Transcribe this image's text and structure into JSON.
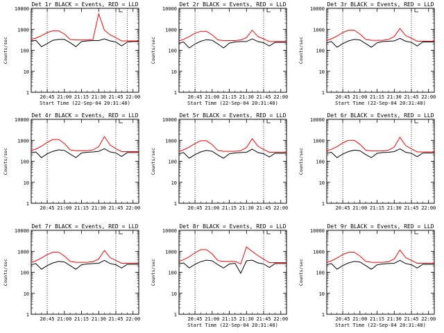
{
  "chart_data": [
    {
      "type": "line",
      "title": "Det 1r BLACK = Events, RED = LLD",
      "xlabel": "Start Time (22-Sep-04 20:31:40)",
      "ylabel": "Counts/sec",
      "yscale": "log",
      "ylim": [
        1,
        10000
      ],
      "x_ticks": [
        "20:45",
        "21:00",
        "21:15",
        "21:30",
        "21:45",
        "22:00"
      ],
      "y_ticks": [
        "1",
        "10",
        "100",
        "1000",
        "10000"
      ],
      "vlines": [
        "20:45",
        "21:45",
        "21:55"
      ],
      "x": [
        "20:31",
        "20:35",
        "20:40",
        "20:45",
        "20:50",
        "20:55",
        "21:00",
        "21:05",
        "21:10",
        "21:15",
        "21:20",
        "21:25",
        "21:30",
        "21:35",
        "21:40",
        "21:45",
        "21:50",
        "21:55",
        "22:00",
        "22:05"
      ],
      "series": [
        {
          "name": "Events",
          "color": "#000000",
          "values": [
            270,
            300,
            150,
            210,
            300,
            330,
            330,
            230,
            150,
            260,
            280,
            290,
            290,
            350,
            280,
            250,
            160,
            250,
            260,
            260
          ]
        },
        {
          "name": "LLD",
          "color": "#ff0000",
          "values": [
            330,
            380,
            500,
            700,
            850,
            850,
            600,
            330,
            310,
            310,
            310,
            330,
            5500,
            900,
            550,
            400,
            280,
            280,
            280,
            280
          ]
        }
      ]
    },
    {
      "type": "line",
      "title": "Det 2r BLACK = Events, RED = LLD",
      "xlabel": "Start Time (22-Sep-04 20:31:40)",
      "ylabel": "Counts/sec",
      "yscale": "log",
      "ylim": [
        1,
        10000
      ],
      "x_ticks": [
        "20:45",
        "21:00",
        "21:15",
        "21:30",
        "21:45",
        "22:00"
      ],
      "y_ticks": [
        "1",
        "10",
        "100",
        "1000",
        "10000"
      ],
      "vlines": [
        "20:45",
        "21:45"
      ],
      "x": [
        "20:31",
        "20:35",
        "20:40",
        "20:45",
        "20:50",
        "20:55",
        "21:00",
        "21:05",
        "21:10",
        "21:15",
        "21:20",
        "21:25",
        "21:30",
        "21:35",
        "21:40",
        "21:45",
        "21:50",
        "21:55",
        "22:00",
        "22:05"
      ],
      "series": [
        {
          "name": "Events",
          "color": "#000000",
          "values": [
            220,
            250,
            130,
            200,
            270,
            320,
            300,
            200,
            130,
            220,
            250,
            260,
            260,
            350,
            260,
            230,
            160,
            240,
            240,
            240
          ]
        },
        {
          "name": "LLD",
          "color": "#ff0000",
          "values": [
            280,
            330,
            450,
            650,
            800,
            800,
            550,
            310,
            290,
            290,
            290,
            310,
            400,
            900,
            450,
            350,
            260,
            260,
            260,
            260
          ]
        }
      ]
    },
    {
      "type": "line",
      "title": "Det 3r BLACK = Events, RED = LLD",
      "xlabel": "Start Time (22-Sep-04 20:31:40)",
      "ylabel": "Counts/sec",
      "yscale": "log",
      "ylim": [
        1,
        10000
      ],
      "x_ticks": [
        "20:45",
        "21:00",
        "21:15",
        "21:30",
        "21:45",
        "22:00"
      ],
      "y_ticks": [
        "1",
        "10",
        "100",
        "1000",
        "10000"
      ],
      "vlines": [
        "20:45",
        "21:45"
      ],
      "x": [
        "20:31",
        "20:35",
        "20:40",
        "20:45",
        "20:50",
        "20:55",
        "21:00",
        "21:05",
        "21:10",
        "21:15",
        "21:20",
        "21:25",
        "21:30",
        "21:35",
        "21:40",
        "21:45",
        "21:50",
        "21:55",
        "22:00",
        "22:05"
      ],
      "series": [
        {
          "name": "Events",
          "color": "#000000",
          "values": [
            230,
            260,
            140,
            210,
            280,
            330,
            310,
            210,
            140,
            230,
            260,
            270,
            280,
            370,
            270,
            240,
            160,
            250,
            250,
            250
          ]
        },
        {
          "name": "LLD",
          "color": "#ff0000",
          "values": [
            300,
            350,
            480,
            700,
            900,
            900,
            600,
            330,
            300,
            300,
            300,
            330,
            450,
            1100,
            500,
            380,
            270,
            270,
            270,
            270
          ]
        }
      ]
    },
    {
      "type": "line",
      "title": "Det 4r BLACK = Events, RED = LLD",
      "xlabel": "",
      "ylabel": "Counts/sec",
      "yscale": "log",
      "ylim": [
        1,
        10000
      ],
      "x_ticks": [
        "20:45",
        "21:00",
        "21:15",
        "21:30",
        "21:45",
        "22:00"
      ],
      "y_ticks": [
        "1",
        "10",
        "100",
        "1000",
        "10000"
      ],
      "vlines": [
        "20:45",
        "21:45"
      ],
      "x": [
        "20:31",
        "20:35",
        "20:40",
        "20:45",
        "20:50",
        "20:55",
        "21:00",
        "21:05",
        "21:10",
        "21:15",
        "21:20",
        "21:25",
        "21:30",
        "21:35",
        "21:40",
        "21:45",
        "21:50",
        "21:55",
        "22:00",
        "22:05"
      ],
      "series": [
        {
          "name": "Events",
          "color": "#000000",
          "values": [
            250,
            280,
            150,
            230,
            300,
            350,
            330,
            220,
            150,
            250,
            270,
            280,
            300,
            400,
            280,
            250,
            170,
            260,
            260,
            260
          ]
        },
        {
          "name": "LLD",
          "color": "#ff0000",
          "values": [
            330,
            380,
            520,
            800,
            1100,
            1100,
            700,
            350,
            320,
            320,
            320,
            350,
            500,
            1500,
            600,
            400,
            290,
            290,
            290,
            290
          ]
        }
      ]
    },
    {
      "type": "line",
      "title": "Det 5r BLACK = Events, RED = LLD",
      "xlabel": "",
      "ylabel": "Counts/sec",
      "yscale": "log",
      "ylim": [
        1,
        10000
      ],
      "x_ticks": [
        "20:45",
        "21:00",
        "21:15",
        "21:30",
        "21:45",
        "22:00"
      ],
      "y_ticks": [
        "1",
        "10",
        "100",
        "1000",
        "10000"
      ],
      "vlines": [
        "20:45",
        "21:45"
      ],
      "x": [
        "20:31",
        "20:35",
        "20:40",
        "20:45",
        "20:50",
        "20:55",
        "21:00",
        "21:05",
        "21:10",
        "21:15",
        "21:20",
        "21:25",
        "21:30",
        "21:35",
        "21:40",
        "21:45",
        "21:50",
        "21:55",
        "22:00",
        "22:05"
      ],
      "series": [
        {
          "name": "Events",
          "color": "#000000",
          "values": [
            230,
            260,
            140,
            210,
            280,
            330,
            300,
            200,
            140,
            230,
            250,
            260,
            270,
            380,
            260,
            230,
            160,
            240,
            240,
            240
          ]
        },
        {
          "name": "LLD",
          "color": "#ff0000",
          "values": [
            300,
            350,
            480,
            700,
            950,
            950,
            620,
            330,
            300,
            300,
            300,
            320,
            450,
            1200,
            520,
            370,
            270,
            270,
            270,
            270
          ]
        }
      ]
    },
    {
      "type": "line",
      "title": "Det 6r BLACK = Events, RED = LLD",
      "xlabel": "",
      "ylabel": "Counts/sec",
      "yscale": "log",
      "ylim": [
        1,
        10000
      ],
      "x_ticks": [
        "20:45",
        "21:00",
        "21:15",
        "21:30",
        "21:45",
        "22:00"
      ],
      "y_ticks": [
        "1",
        "10",
        "100",
        "1000",
        "10000"
      ],
      "vlines": [
        "20:45",
        "21:45"
      ],
      "x": [
        "20:31",
        "20:35",
        "20:40",
        "20:45",
        "20:50",
        "20:55",
        "21:00",
        "21:05",
        "21:10",
        "21:15",
        "21:20",
        "21:25",
        "21:30",
        "21:35",
        "21:40",
        "21:45",
        "21:50",
        "21:55",
        "22:00",
        "22:05"
      ],
      "series": [
        {
          "name": "Events",
          "color": "#000000",
          "values": [
            240,
            270,
            150,
            220,
            290,
            340,
            320,
            210,
            150,
            240,
            260,
            270,
            290,
            390,
            270,
            240,
            165,
            250,
            250,
            250
          ]
        },
        {
          "name": "LLD",
          "color": "#ff0000",
          "values": [
            320,
            370,
            500,
            750,
            1000,
            1000,
            650,
            340,
            310,
            310,
            310,
            340,
            480,
            1400,
            560,
            390,
            280,
            280,
            280,
            280
          ]
        }
      ]
    },
    {
      "type": "line",
      "title": "Det 7r BLACK = Events, RED = LLD",
      "xlabel": "",
      "ylabel": "Counts/sec",
      "yscale": "log",
      "ylim": [
        1,
        10000
      ],
      "x_ticks": [
        "20:45",
        "21:00",
        "21:15",
        "21:30",
        "21:45",
        "22:00"
      ],
      "y_ticks": [
        "1",
        "10",
        "100",
        "1000",
        "10000"
      ],
      "vlines": [
        "20:45",
        "21:45"
      ],
      "x": [
        "20:31",
        "20:35",
        "20:40",
        "20:45",
        "20:50",
        "20:55",
        "21:00",
        "21:05",
        "21:10",
        "21:15",
        "21:20",
        "21:25",
        "21:30",
        "21:35",
        "21:40",
        "21:45",
        "21:50",
        "21:55",
        "22:00",
        "22:05"
      ],
      "series": [
        {
          "name": "Events",
          "color": "#000000",
          "values": [
            230,
            260,
            140,
            210,
            280,
            330,
            310,
            210,
            140,
            230,
            250,
            260,
            270,
            370,
            260,
            230,
            160,
            240,
            240,
            240
          ]
        },
        {
          "name": "LLD",
          "color": "#ff0000",
          "values": [
            300,
            350,
            480,
            700,
            900,
            900,
            600,
            330,
            300,
            300,
            300,
            320,
            430,
            1100,
            500,
            370,
            270,
            270,
            270,
            270
          ]
        }
      ]
    },
    {
      "type": "line",
      "title": "Det 8r BLACK = Events, RED = LLD",
      "xlabel": "Start Time (22-Sep-04 20:31:40)",
      "ylabel": "Counts/sec",
      "yscale": "log",
      "ylim": [
        1,
        10000
      ],
      "x_ticks": [
        "20:45",
        "21:00",
        "21:15",
        "21:30",
        "21:45",
        "22:00"
      ],
      "y_ticks": [
        "1",
        "10",
        "100",
        "1000",
        "10000"
      ],
      "vlines": [
        "20:45",
        "21:45"
      ],
      "x": [
        "20:31",
        "20:35",
        "20:40",
        "20:45",
        "20:50",
        "20:55",
        "21:00",
        "21:05",
        "21:10",
        "21:15",
        "21:20",
        "21:25",
        "21:30",
        "21:35",
        "21:40",
        "21:45",
        "21:50",
        "21:55",
        "22:00",
        "22:05"
      ],
      "series": [
        {
          "name": "Events",
          "color": "#000000",
          "values": [
            250,
            280,
            160,
            240,
            320,
            380,
            350,
            230,
            160,
            250,
            270,
            90,
            350,
            380,
            280,
            250,
            170,
            260,
            260,
            260
          ]
        },
        {
          "name": "LLD",
          "color": "#ff0000",
          "values": [
            330,
            400,
            550,
            850,
            1200,
            1200,
            750,
            360,
            330,
            330,
            330,
            250,
            1600,
            1000,
            620,
            420,
            290,
            290,
            290,
            290
          ]
        }
      ]
    },
    {
      "type": "line",
      "title": "Det 9r BLACK = Events, RED = LLD",
      "xlabel": "Start Time (22-Sep-04 20:31:40)",
      "ylabel": "Counts/sec",
      "yscale": "log",
      "ylim": [
        1,
        10000
      ],
      "x_ticks": [
        "20:45",
        "21:00",
        "21:15",
        "21:30",
        "21:45",
        "22:00"
      ],
      "y_ticks": [
        "1",
        "10",
        "100",
        "1000",
        "10000"
      ],
      "vlines": [
        "20:45",
        "21:45"
      ],
      "x": [
        "20:31",
        "20:35",
        "20:40",
        "20:45",
        "20:50",
        "20:55",
        "21:00",
        "21:05",
        "21:10",
        "21:15",
        "21:20",
        "21:25",
        "21:30",
        "21:35",
        "21:40",
        "21:45",
        "21:50",
        "21:55",
        "22:00",
        "22:05"
      ],
      "series": [
        {
          "name": "Events",
          "color": "#000000",
          "values": [
            230,
            260,
            140,
            210,
            280,
            330,
            310,
            210,
            140,
            230,
            250,
            260,
            270,
            370,
            260,
            230,
            160,
            240,
            240,
            240
          ]
        },
        {
          "name": "LLD",
          "color": "#ff0000",
          "values": [
            300,
            350,
            480,
            700,
            900,
            900,
            600,
            330,
            300,
            300,
            300,
            320,
            430,
            1150,
            500,
            370,
            270,
            270,
            270,
            270
          ]
        }
      ]
    }
  ]
}
